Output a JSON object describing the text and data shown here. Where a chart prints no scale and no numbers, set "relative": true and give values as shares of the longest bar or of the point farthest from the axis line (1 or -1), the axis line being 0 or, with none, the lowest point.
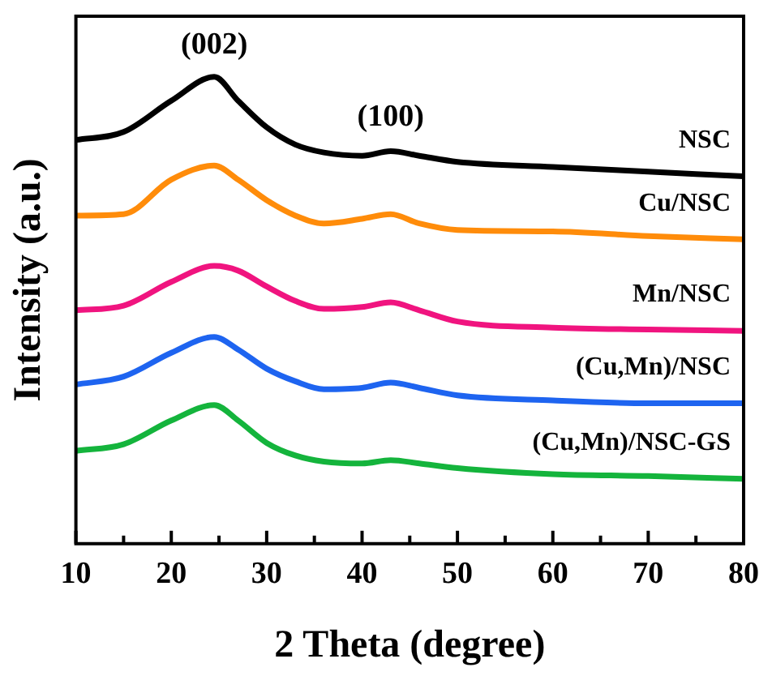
{
  "chart_data": {
    "type": "line",
    "relative": true,
    "xlabel": "2 Theta (degree)",
    "ylabel": "Intensity (a.u.)",
    "x": [
      10,
      15,
      20,
      24.5,
      27,
      30,
      33,
      36,
      40,
      43,
      46,
      50,
      60,
      70,
      80
    ],
    "xlim": [
      10,
      80
    ],
    "xticks": [
      10,
      {
        "value": 15,
        "label": null
      },
      20,
      {
        "value": 25,
        "label": null
      },
      30,
      {
        "value": 35,
        "label": null
      },
      40,
      {
        "value": 45,
        "label": null
      },
      50,
      {
        "value": 55,
        "label": null
      },
      60,
      {
        "value": 65,
        "label": null
      },
      70,
      {
        "value": 75,
        "label": null
      },
      80
    ],
    "grid": false,
    "legend": false,
    "marker": "none",
    "line_style": "solid",
    "tick_labels": "x",
    "annotations": [
      {
        "text": "(002)",
        "x": 24.5,
        "y": 1.0
      },
      {
        "text": "(100)",
        "x": 43,
        "y": 0.845
      }
    ],
    "series": [
      {
        "name": "NSC",
        "color": "#000000",
        "values": [
          0.865,
          0.882,
          0.949,
          1.0,
          0.949,
          0.892,
          0.855,
          0.838,
          0.831,
          0.841,
          0.831,
          0.818,
          0.807,
          0.797,
          0.787
        ]
      },
      {
        "name": "Cu/NSC",
        "color": "#ff8c0a",
        "values": [
          0.703,
          0.706,
          0.78,
          0.81,
          0.78,
          0.736,
          0.703,
          0.686,
          0.696,
          0.706,
          0.686,
          0.672,
          0.669,
          0.659,
          0.652
        ]
      },
      {
        "name": "Mn/NSC",
        "color": "#f0147f",
        "values": [
          0.5,
          0.51,
          0.561,
          0.595,
          0.585,
          0.551,
          0.52,
          0.503,
          0.507,
          0.517,
          0.5,
          0.476,
          0.463,
          0.459,
          0.456
        ]
      },
      {
        "name": "(Cu,Mn)/NSC",
        "color": "#1e64f0",
        "values": [
          0.341,
          0.358,
          0.409,
          0.443,
          0.416,
          0.375,
          0.348,
          0.331,
          0.334,
          0.345,
          0.334,
          0.318,
          0.307,
          0.301,
          0.301
        ]
      },
      {
        "name": "(Cu,Mn)/NSC-GS",
        "color": "#14b43c",
        "values": [
          0.199,
          0.213,
          0.264,
          0.297,
          0.264,
          0.216,
          0.189,
          0.176,
          0.172,
          0.179,
          0.172,
          0.162,
          0.149,
          0.145,
          0.139
        ]
      }
    ]
  }
}
